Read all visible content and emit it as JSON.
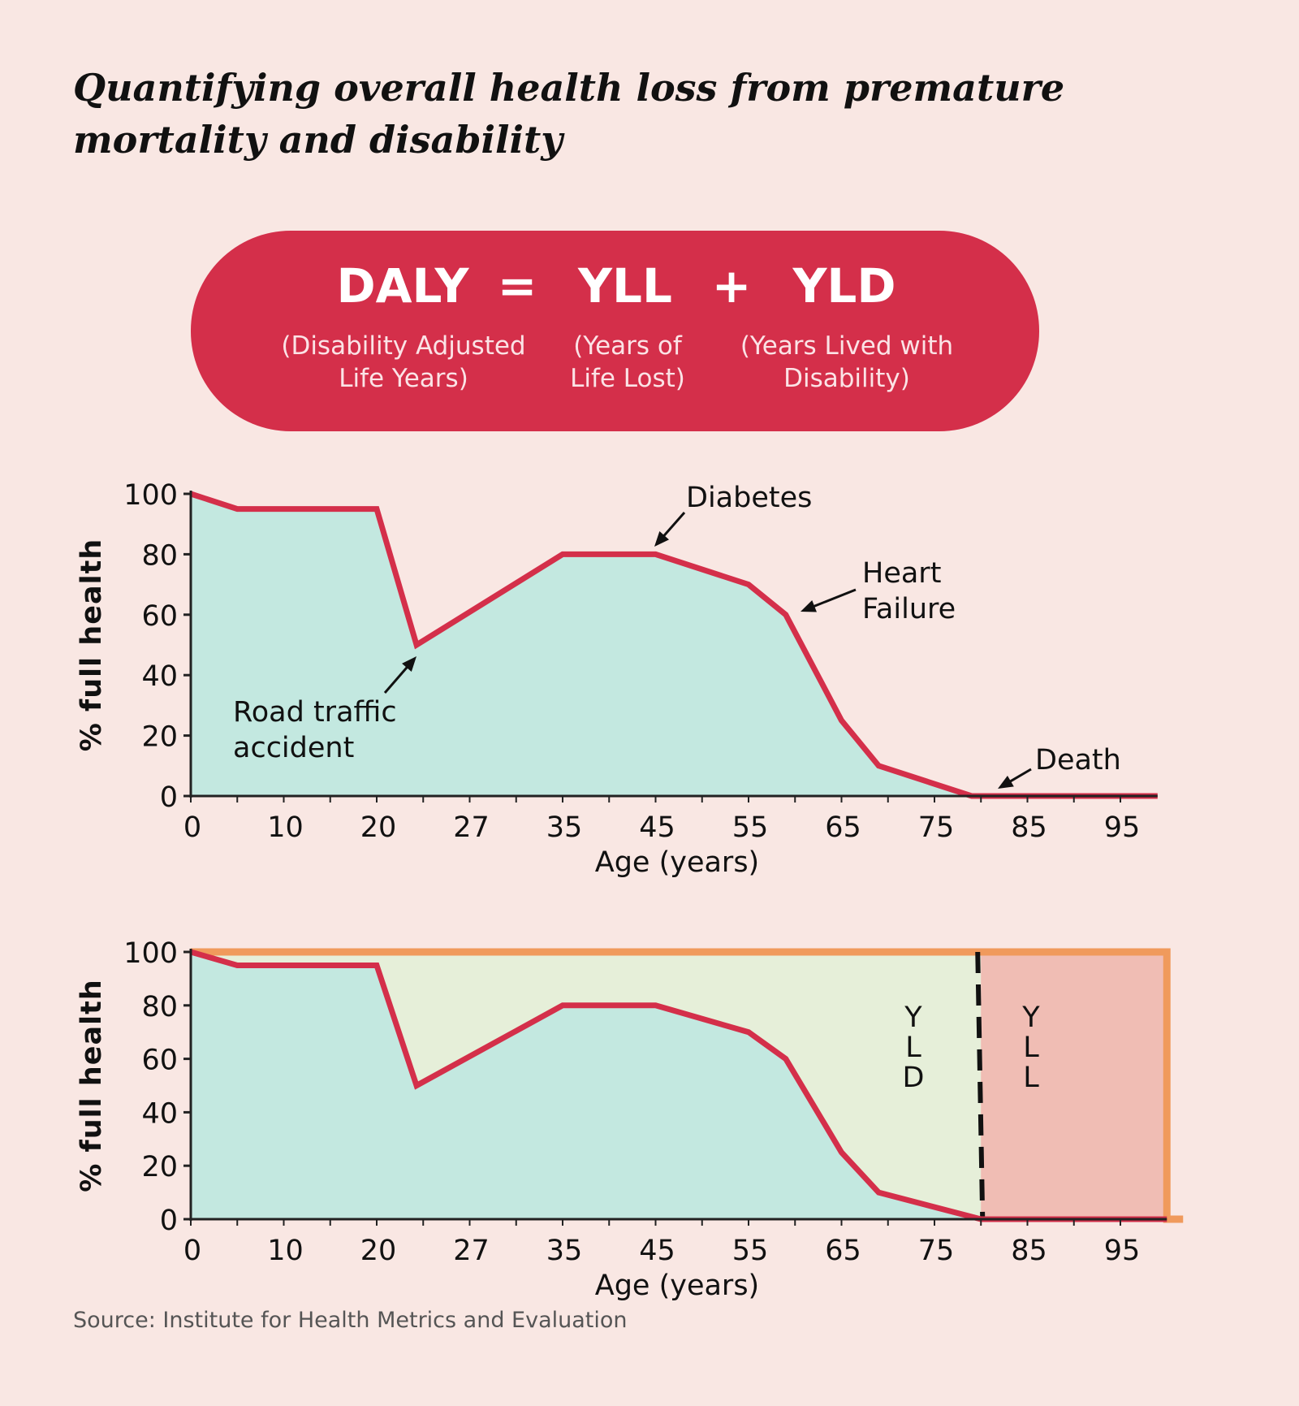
{
  "title": "Quantifying overall health loss from premature mortality and disability",
  "formula": {
    "terms": [
      {
        "abbr": "DALY",
        "line1": "(Disability Adjusted",
        "line2": "Life Years)"
      },
      {
        "abbr": "YLL",
        "line1": "(Years of",
        "line2": "Life Lost)"
      },
      {
        "abbr": "YLD",
        "line1": "(Years Lived with",
        "line2": "Disability)"
      }
    ],
    "equals": "=",
    "plus": "+",
    "color": "#d42f4a"
  },
  "source": "Source: Institute for Health Metrics and Evaluation",
  "chart_data": [
    {
      "type": "area",
      "xlabel": "Age (years)",
      "ylabel": "% full health",
      "x_tick_labels": [
        "0",
        "10",
        "20",
        "27",
        "35",
        "45",
        "55",
        "65",
        "75",
        "85",
        "95"
      ],
      "y_ticks": [
        "0",
        "20",
        "40",
        "60",
        "80",
        "100"
      ],
      "ylim": [
        0,
        100
      ],
      "grid": false,
      "x": [
        0,
        5,
        20,
        23,
        35,
        45,
        55,
        59,
        65,
        69,
        79,
        99
      ],
      "values": [
        100,
        95,
        95,
        50,
        80,
        80,
        70,
        60,
        25,
        10,
        0,
        0
      ],
      "line_color": "#d42f4a",
      "fill_color": "#c3e8e0",
      "annotations": [
        {
          "text": "Diabetes",
          "lines": [
            "Diabetes"
          ],
          "x": 45,
          "y": 80
        },
        {
          "text": "Heart Failure",
          "lines": [
            "Heart",
            "Failure"
          ],
          "x": 59,
          "y": 60
        },
        {
          "text": "Road traffic accident",
          "lines": [
            "Road traffic",
            "accident"
          ],
          "x": 23,
          "y": 50
        },
        {
          "text": "Death",
          "lines": [
            "Death"
          ],
          "x": 80,
          "y": 0
        }
      ]
    },
    {
      "type": "area",
      "xlabel": "Age (years)",
      "ylabel": "% full health",
      "x_tick_labels": [
        "0",
        "10",
        "20",
        "27",
        "35",
        "45",
        "55",
        "65",
        "75",
        "85",
        "95"
      ],
      "y_ticks": [
        "0",
        "20",
        "40",
        "60",
        "80",
        "100"
      ],
      "ylim": [
        0,
        100
      ],
      "grid": false,
      "x": [
        0,
        5,
        20,
        23,
        35,
        45,
        55,
        59,
        65,
        69,
        80,
        100
      ],
      "values": [
        100,
        95,
        95,
        50,
        80,
        80,
        70,
        60,
        25,
        10,
        0,
        0
      ],
      "death_age": 80,
      "end_age": 100,
      "line_color": "#d42f4a",
      "fill_color": "#c3e8e0",
      "regions": [
        {
          "label": "YLD",
          "letters": [
            "Y",
            "L",
            "D"
          ],
          "color": "#e6efd9"
        },
        {
          "label": "YLL",
          "letters": [
            "Y",
            "L",
            "L"
          ],
          "color": "#f0bdb4"
        }
      ],
      "frame_color": "#f09a5c"
    }
  ]
}
